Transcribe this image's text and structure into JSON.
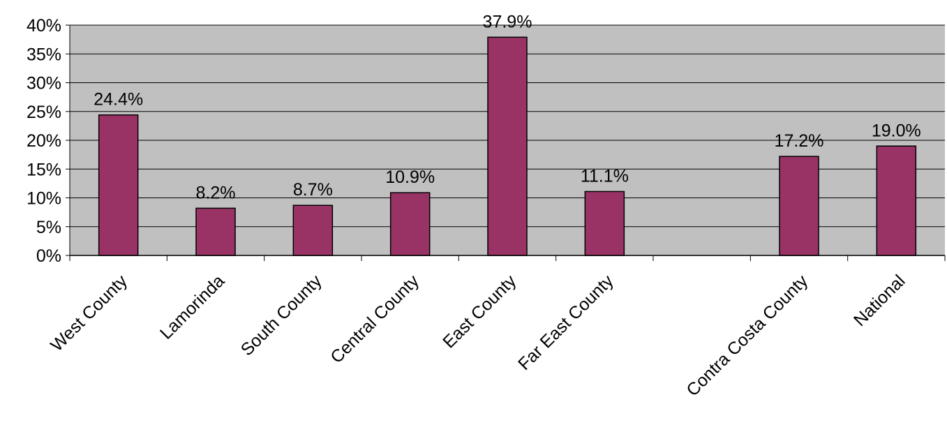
{
  "chart_data": {
    "type": "bar",
    "title": "",
    "xlabel": "",
    "ylabel": "",
    "categories": [
      "West County",
      "Lamorinda",
      "South County",
      "Central County",
      "East County",
      "Far East County",
      "",
      "Contra Costa County",
      "National"
    ],
    "values": [
      24.4,
      8.2,
      8.7,
      10.9,
      37.9,
      11.1,
      null,
      17.2,
      19.0
    ],
    "data_labels": [
      "24.4%",
      "8.2%",
      "8.7%",
      "10.9%",
      "37.9%",
      "11.1%",
      "",
      "17.2%",
      "19.0%"
    ],
    "ylim": [
      0,
      40
    ],
    "y_ticks": [
      0,
      5,
      10,
      15,
      20,
      25,
      30,
      35,
      40
    ],
    "y_tick_labels": [
      "0%",
      "5%",
      "10%",
      "15%",
      "20%",
      "25%",
      "30%",
      "35%",
      "40%"
    ],
    "grid": true,
    "legend": "none",
    "colors": {
      "bar_fill": "#993366",
      "bar_stroke": "#000000",
      "plot_background": "#c0c0c0",
      "gridline": "#000000"
    }
  }
}
